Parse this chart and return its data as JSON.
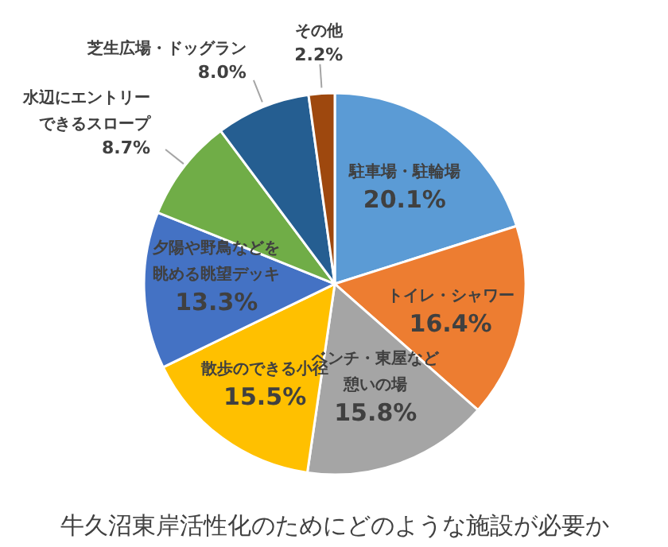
{
  "chart_data": {
    "type": "pie",
    "title": "牛久沼東岸活性化のためにどのような施設が必要か",
    "categories": [
      "駐車場・駐輪場",
      "トイレ・シャワー",
      "ベンチ・東屋など憩いの場",
      "散歩のできる小径",
      "夕陽や野鳥などを眺める眺望デッキ",
      "水辺にエントリーできるスロープ",
      "芝生広場・ドッグラン",
      "その他"
    ],
    "values": [
      20.1,
      16.4,
      15.8,
      15.5,
      13.3,
      8.7,
      8.0,
      2.2
    ],
    "colors": [
      "#5b9bd5",
      "#ed7d31",
      "#a5a5a5",
      "#ffc000",
      "#4472c4",
      "#70ad47",
      "#255e91",
      "#9e480e"
    ],
    "value_labels": [
      "20.1%",
      "16.4%",
      "15.8%",
      "15.5%",
      "13.3%",
      "8.7%",
      "8.0%",
      "2.2%"
    ]
  }
}
